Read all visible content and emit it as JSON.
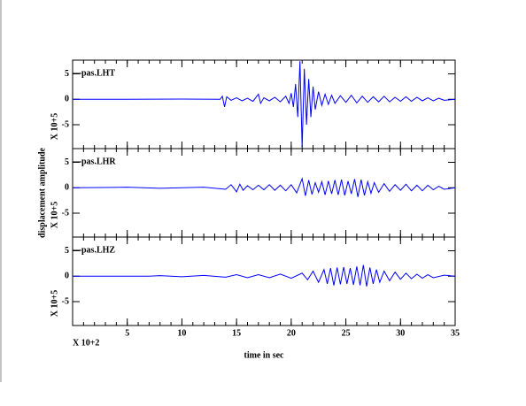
{
  "chart_data": [
    {
      "type": "line",
      "title": "pas.LHT",
      "y_multiplier": "X 10+5",
      "color": "#0000ff",
      "xlim": [
        0,
        35
      ],
      "xticks": [
        5,
        10,
        15,
        20,
        25,
        30,
        35
      ],
      "ylim": [
        -9.7,
        7.7
      ],
      "yticks": [
        5,
        0,
        -5
      ],
      "x": [
        0,
        5,
        10,
        13.5,
        13.7,
        13.9,
        14.1,
        14.5,
        15,
        15.5,
        16,
        16.5,
        17,
        17.2,
        17.5,
        18,
        18.5,
        19,
        19.5,
        19.8,
        20,
        20.2,
        20.4,
        20.6,
        20.8,
        21,
        21.2,
        21.4,
        21.6,
        21.8,
        22,
        22.2,
        22.5,
        22.8,
        23.1,
        23.4,
        23.7,
        24,
        24.5,
        25,
        25.5,
        26,
        26.5,
        27,
        27.5,
        28,
        28.5,
        29,
        29.5,
        30,
        30.5,
        31,
        31.5,
        32,
        32.5,
        33,
        33.5,
        34,
        35
      ],
      "values": [
        0,
        0,
        0.05,
        0,
        0.6,
        -1.5,
        0.5,
        -0.2,
        0.3,
        -0.3,
        0.2,
        -0.4,
        1.0,
        -0.8,
        0.3,
        -0.3,
        0.4,
        -0.5,
        0.6,
        -0.8,
        1.2,
        -1.5,
        3,
        -3.5,
        7.5,
        -9.5,
        6,
        -5,
        4,
        -3.5,
        2.5,
        -2,
        1.5,
        -1.2,
        1,
        -1,
        0.8,
        -0.8,
        0.7,
        -0.6,
        0.8,
        -0.7,
        0.6,
        -0.6,
        0.5,
        -0.5,
        0.6,
        -0.5,
        0.4,
        -0.4,
        0.5,
        -0.4,
        0.4,
        -0.3,
        0.3,
        -0.3,
        0.2,
        -0.2,
        0
      ]
    },
    {
      "type": "line",
      "title": "pas.LHR",
      "y_multiplier": "X 10+5",
      "ylabel": "displacement amplitude",
      "color": "#0000ff",
      "xlim": [
        0,
        35
      ],
      "xticks": [
        5,
        10,
        15,
        20,
        25,
        30,
        35
      ],
      "ylim": [
        -9.7,
        7.7
      ],
      "yticks": [
        5,
        0,
        -5
      ],
      "x": [
        0,
        5,
        8,
        12,
        14,
        14.5,
        15,
        15.3,
        15.6,
        16,
        16.5,
        17,
        17.5,
        18,
        18.5,
        19,
        19.5,
        20,
        20.5,
        21,
        21.3,
        21.6,
        21.9,
        22.2,
        22.5,
        22.8,
        23.1,
        23.4,
        23.7,
        24,
        24.3,
        24.6,
        24.9,
        25.2,
        25.5,
        25.8,
        26.1,
        26.4,
        26.7,
        27,
        27.3,
        27.6,
        28,
        28.5,
        29,
        29.5,
        30,
        30.5,
        31,
        31.5,
        32,
        32.5,
        33,
        33.5,
        34,
        35
      ],
      "values": [
        0,
        0.1,
        -0.1,
        0.1,
        -0.3,
        0.6,
        -0.8,
        0.7,
        -0.5,
        0.4,
        -0.4,
        0.5,
        -0.4,
        0.6,
        -0.5,
        0.5,
        -0.6,
        0.6,
        -1.0,
        1.8,
        -1.6,
        1.5,
        -1.3,
        1.0,
        -0.9,
        1.2,
        -1.4,
        1.3,
        -1.2,
        1.5,
        -1.4,
        1.6,
        -1.5,
        1.3,
        -1.2,
        1.7,
        -1.8,
        1.6,
        -1.5,
        1.2,
        -1.1,
        1.0,
        -0.9,
        0.8,
        -0.7,
        0.6,
        -0.5,
        0.7,
        -0.6,
        0.5,
        -0.6,
        0.5,
        -0.4,
        0.3,
        -0.3,
        0
      ]
    },
    {
      "type": "line",
      "title": "pas.LHZ",
      "y_multiplier": "X 10+5",
      "xlabel": "time in sec",
      "x_multiplier": "X 10+2",
      "color": "#0000ff",
      "xlim": [
        0,
        35
      ],
      "xticks": [
        5,
        10,
        15,
        20,
        25,
        30,
        35
      ],
      "ylim": [
        -9.7,
        7.7
      ],
      "yticks": [
        5,
        0,
        -5
      ],
      "x": [
        0,
        7,
        8,
        10,
        12,
        14,
        15,
        16,
        17,
        18,
        19,
        20,
        21,
        21.5,
        22,
        22.5,
        23,
        23.3,
        23.6,
        23.9,
        24.2,
        24.5,
        24.8,
        25.1,
        25.4,
        25.7,
        26,
        26.3,
        26.6,
        26.9,
        27.2,
        27.5,
        27.8,
        28.1,
        28.5,
        29,
        29.5,
        30,
        30.5,
        31,
        31.5,
        32,
        32.5,
        33,
        34,
        35
      ],
      "values": [
        0,
        0,
        0.1,
        -0.1,
        0.15,
        -0.2,
        0.3,
        -0.3,
        0.3,
        -0.3,
        0.4,
        -0.4,
        0.6,
        -0.7,
        1.0,
        -1.2,
        1.3,
        -1.5,
        1.6,
        -1.8,
        1.7,
        -1.6,
        1.8,
        -1.5,
        1.6,
        -1.7,
        1.9,
        -1.8,
        2.2,
        -2.0,
        1.7,
        -1.5,
        1.3,
        -1.2,
        1.0,
        -0.9,
        0.8,
        -0.6,
        0.6,
        -0.5,
        0.4,
        -0.4,
        0.3,
        -0.3,
        0.2,
        0
      ]
    }
  ]
}
